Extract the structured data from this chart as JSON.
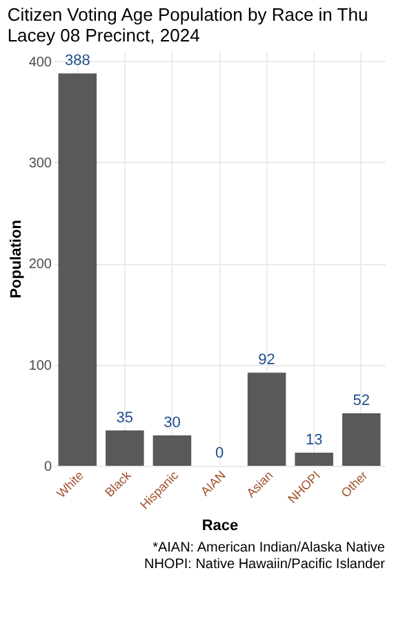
{
  "chart_data": {
    "type": "bar",
    "title": [
      "Citizen Voting Age Population by Race in Thu",
      "Lacey 08 Precinct,  2024"
    ],
    "xlabel": "Race",
    "ylabel": "Population",
    "categories": [
      "White",
      "Black",
      "Hispanic",
      "AIAN",
      "Asian",
      "NHOPI",
      "Other"
    ],
    "values": [
      388,
      35,
      30,
      0,
      92,
      13,
      52
    ],
    "color": "#595959",
    "ylim": [
      0,
      410
    ],
    "yticks": [
      0,
      100,
      200,
      300,
      400
    ],
    "grid": true,
    "data_labels": true,
    "annotations": [
      "*AIAN: American Indian/Alaska Native",
      "NHOPI: Native Hawaiin/Pacific Islander"
    ]
  }
}
